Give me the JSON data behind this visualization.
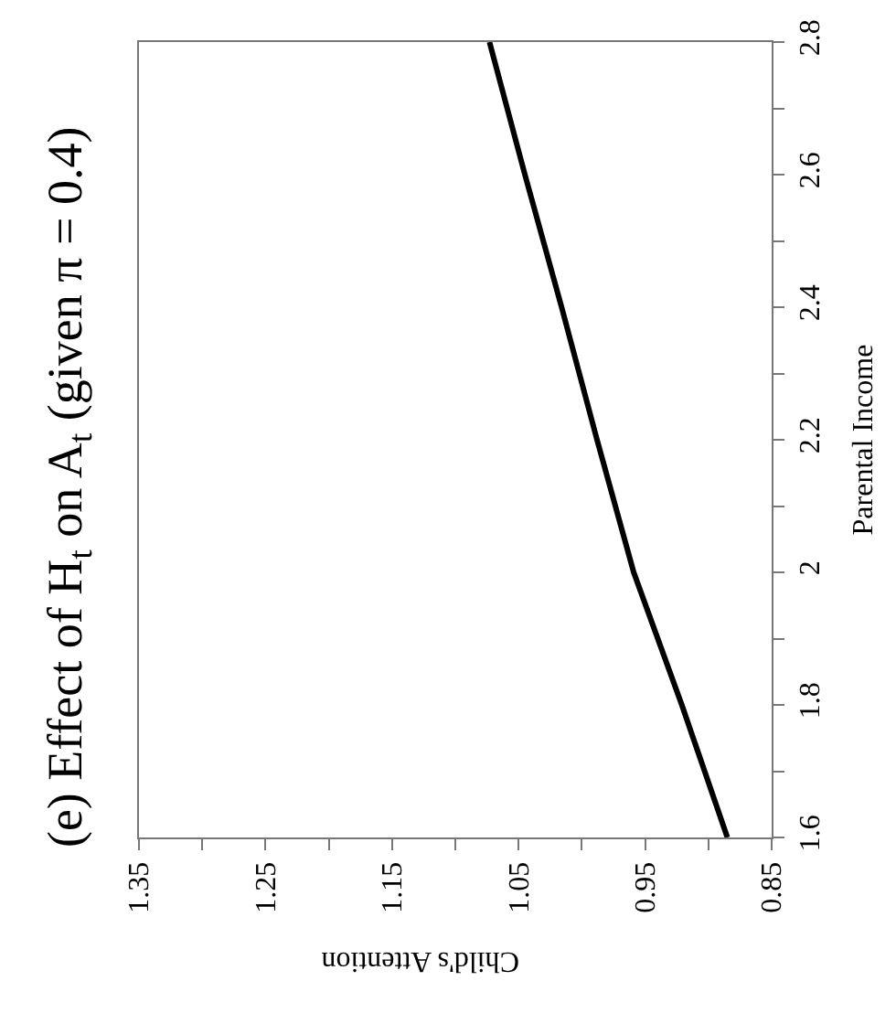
{
  "chart_data": {
    "type": "line",
    "title": "(e) Effect of H$_{t}$ on A$_{t}$ (given π = 0.4)",
    "xlabel": "Child's Attention",
    "ylabel": "Parental Income",
    "x": [
      0.885,
      0.921,
      0.959,
      0.988,
      1.016,
      1.045,
      1.073
    ],
    "series": [
      {
        "color": "#000000",
        "values": [
          1.6,
          1.8,
          2.0,
          2.2,
          2.4,
          2.6,
          2.8
        ]
      }
    ],
    "xlim": [
      1.35,
      0.85
    ],
    "xticks": [
      1.35,
      {
        "value": 1.3,
        "label": null
      },
      1.25,
      {
        "value": 1.2,
        "label": null
      },
      1.15,
      {
        "value": 1.1,
        "label": null
      },
      1.05,
      {
        "value": 1.0,
        "label": null
      },
      0.95,
      {
        "value": 0.9,
        "label": null
      },
      0.85
    ],
    "ylim": [
      1.6,
      2.8
    ],
    "yticks": [
      1.6,
      {
        "value": 1.7,
        "label": null
      },
      1.8,
      {
        "value": 1.9,
        "label": null
      },
      2,
      {
        "value": 2.1,
        "label": null
      },
      2.2,
      {
        "value": 2.3,
        "label": null
      },
      2.4,
      {
        "value": 2.5,
        "label": null
      },
      2.6,
      {
        "value": 2.7,
        "label": null
      },
      2.8
    ],
    "grid": false,
    "marker": "none",
    "line_style": "solid"
  }
}
